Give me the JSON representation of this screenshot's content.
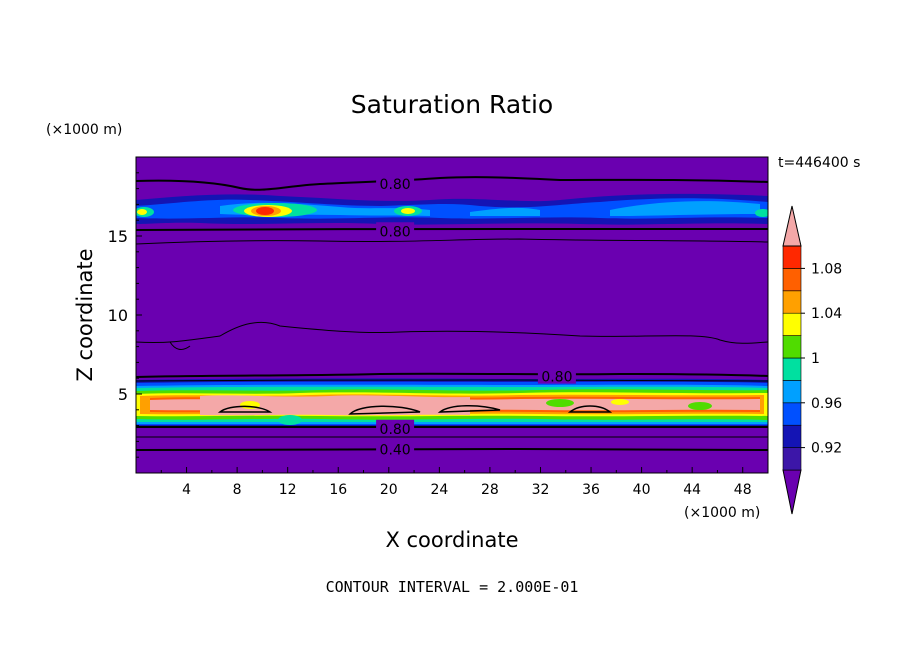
{
  "chart_data": {
    "type": "heatmap",
    "title": "Saturation Ratio",
    "xlabel": "X coordinate",
    "ylabel": "Z coordinate",
    "x_unit": "(×1000 m)",
    "y_unit": "(×1000 m)",
    "time_label": "t=446400 s",
    "footer": "CONTOUR INTERVAL = 2.000E-01",
    "xlim": [
      0,
      50
    ],
    "ylim": [
      0,
      20
    ],
    "x_ticks": [
      4,
      8,
      12,
      16,
      20,
      24,
      28,
      32,
      36,
      40,
      44,
      48
    ],
    "y_ticks": [
      5,
      10,
      15
    ],
    "colorbar": {
      "labels": [
        "0.92",
        "0.96",
        "1",
        "1.04",
        "1.08"
      ],
      "levels": [
        0.92,
        0.94,
        0.96,
        0.98,
        1.0,
        1.02,
        1.04,
        1.06,
        1.08,
        1.1
      ],
      "colors": [
        "#6a00b0",
        "#3c16a8",
        "#1414b4",
        "#0050ff",
        "#00a0ff",
        "#00e0a0",
        "#50dc00",
        "#ffff00",
        "#ffa000",
        "#ff6000",
        "#ff2800",
        "#f4a8a8"
      ]
    },
    "contour_labels": [
      {
        "text": "0.80",
        "x": 20.5,
        "y": 18.3
      },
      {
        "text": "0.80",
        "x": 20.5,
        "y": 15.3
      },
      {
        "text": "0.80",
        "x": 33.3,
        "y": 6.1
      },
      {
        "text": "0.80",
        "x": 20.5,
        "y": 2.8
      },
      {
        "text": "0.40",
        "x": 20.5,
        "y": 1.5
      }
    ]
  }
}
